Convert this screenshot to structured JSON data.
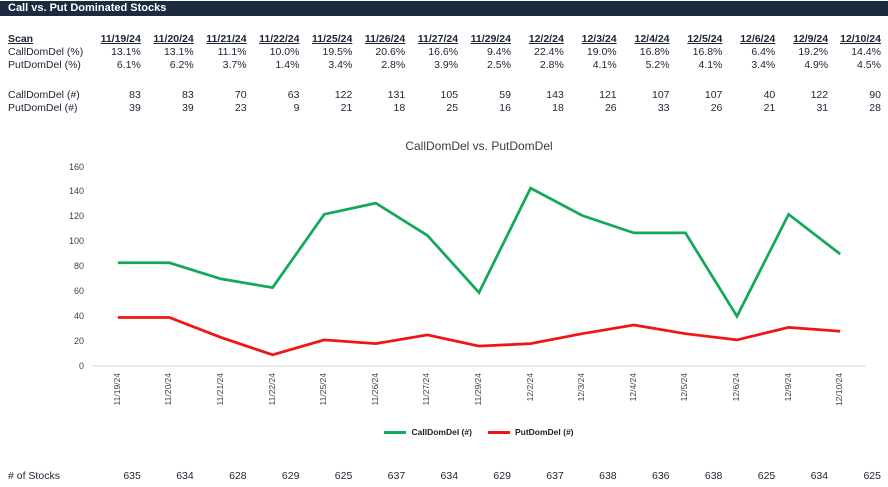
{
  "header": {
    "title": "Call vs. Put Dominated Stocks"
  },
  "table": {
    "label_header": "Scan",
    "dates": [
      "11/19/24",
      "11/20/24",
      "11/21/24",
      "11/22/24",
      "11/25/24",
      "11/26/24",
      "11/27/24",
      "11/29/24",
      "12/2/24",
      "12/3/24",
      "12/4/24",
      "12/5/24",
      "12/6/24",
      "12/9/24",
      "12/10/24"
    ],
    "rows": [
      {
        "label": "CallDomDel (%)",
        "values": [
          "13.1%",
          "13.1%",
          "11.1%",
          "10.0%",
          "19.5%",
          "20.6%",
          "16.6%",
          "9.4%",
          "22.4%",
          "19.0%",
          "16.8%",
          "16.8%",
          "6.4%",
          "19.2%",
          "14.4%"
        ]
      },
      {
        "label": "PutDomDel (%)",
        "values": [
          "6.1%",
          "6.2%",
          "3.7%",
          "1.4%",
          "3.4%",
          "2.8%",
          "3.9%",
          "2.5%",
          "2.8%",
          "4.1%",
          "5.2%",
          "4.1%",
          "3.4%",
          "4.9%",
          "4.5%"
        ]
      },
      {
        "label": "CallDomDel (#)",
        "values": [
          "83",
          "83",
          "70",
          "63",
          "122",
          "131",
          "105",
          "59",
          "143",
          "121",
          "107",
          "107",
          "40",
          "122",
          "90"
        ]
      },
      {
        "label": "PutDomDel (#)",
        "values": [
          "39",
          "39",
          "23",
          "9",
          "21",
          "18",
          "25",
          "16",
          "18",
          "26",
          "33",
          "26",
          "21",
          "31",
          "28"
        ]
      }
    ]
  },
  "chart_data": {
    "type": "line",
    "title": "CallDomDel vs. PutDomDel",
    "categories": [
      "11/19/24",
      "11/20/24",
      "11/21/24",
      "11/22/24",
      "11/25/24",
      "11/26/24",
      "11/27/24",
      "11/29/24",
      "12/2/24",
      "12/3/24",
      "12/4/24",
      "12/5/24",
      "12/6/24",
      "12/9/24",
      "12/10/24"
    ],
    "series": [
      {
        "name": "CallDomDel (#)",
        "color": "#14A85A",
        "values": [
          83,
          83,
          70,
          63,
          122,
          131,
          105,
          59,
          143,
          121,
          107,
          107,
          40,
          122,
          90
        ]
      },
      {
        "name": "PutDomDel (#)",
        "color": "#F01414",
        "values": [
          39,
          39,
          23,
          9,
          21,
          18,
          25,
          16,
          18,
          26,
          33,
          26,
          21,
          31,
          28
        ]
      }
    ],
    "xlabel": "",
    "ylabel": "",
    "ylim": [
      0,
      160
    ],
    "ytick_step": 20,
    "grid": false,
    "legend_position": "bottom"
  },
  "footer": {
    "label": "# of Stocks",
    "values": [
      "635",
      "634",
      "628",
      "629",
      "625",
      "637",
      "634",
      "629",
      "637",
      "638",
      "636",
      "638",
      "625",
      "634",
      "625"
    ]
  },
  "colors": {
    "header_bg": "#1C2B3F",
    "table_text": "#1B2433",
    "axis_text": "#404040",
    "axis_line": "#D9D9D9",
    "call_green": "#14A85A",
    "put_red": "#F01414"
  }
}
